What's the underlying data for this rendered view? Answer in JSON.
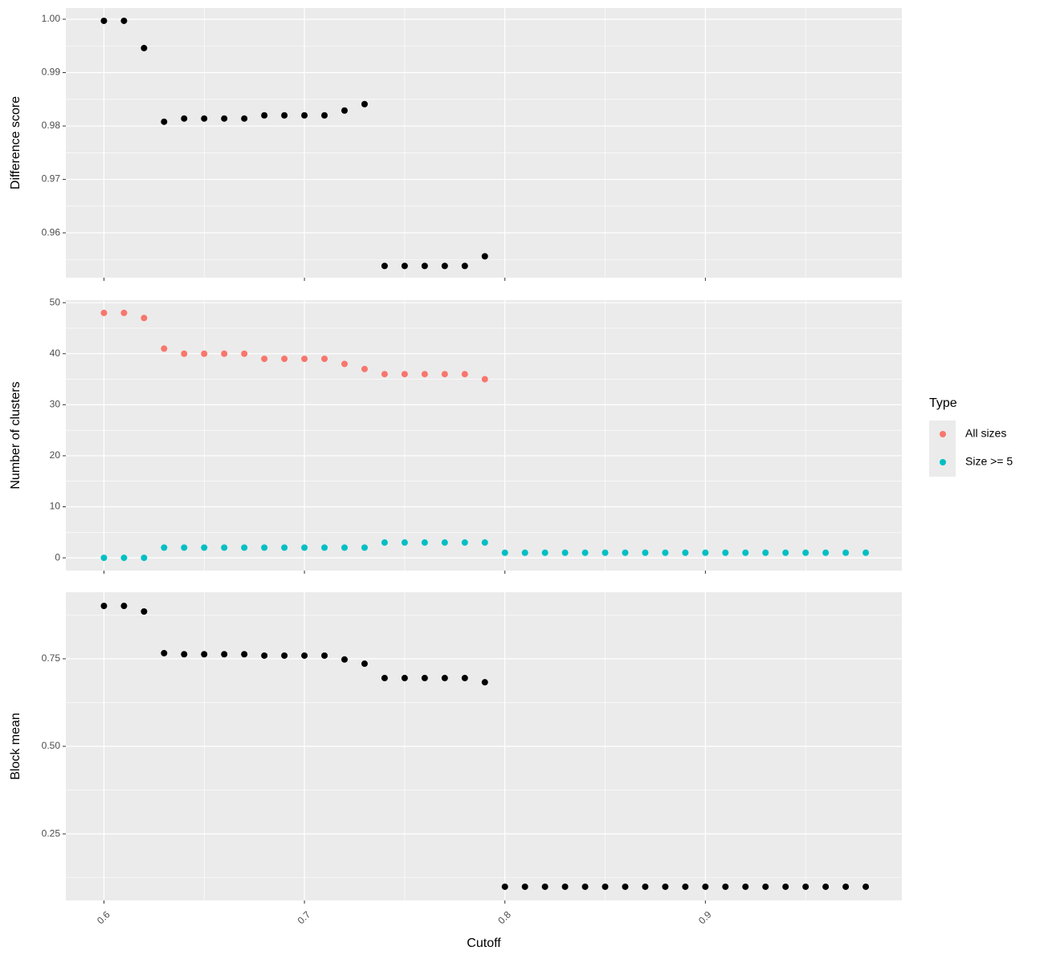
{
  "chart_data": [
    {
      "type": "scatter",
      "y_label": "Difference score",
      "x": [
        0.6,
        0.61,
        0.62,
        0.63,
        0.64,
        0.65,
        0.66,
        0.67,
        0.68,
        0.69,
        0.7,
        0.71,
        0.72,
        0.73,
        0.74,
        0.75,
        0.76,
        0.77,
        0.78,
        0.79,
        0.8,
        0.81,
        0.82,
        0.83,
        0.84,
        0.85,
        0.86,
        0.87,
        0.88,
        0.89,
        0.9,
        0.91,
        0.92,
        0.93,
        0.94,
        0.95,
        0.96,
        0.97,
        0.98
      ],
      "values": [
        0.9997,
        0.9997,
        0.9946,
        0.9808,
        0.9814,
        0.9814,
        0.9814,
        0.9814,
        0.982,
        0.982,
        0.982,
        0.982,
        0.9829,
        0.9841,
        0.9538,
        0.9538,
        0.9538,
        0.9538,
        0.9538,
        0.9556,
        null,
        null,
        null,
        null,
        null,
        null,
        null,
        null,
        null,
        null,
        null,
        null,
        null,
        null,
        null,
        null,
        null,
        null,
        null
      ],
      "color": "#000000",
      "xlim": [
        0.581,
        0.998
      ],
      "xticks": [
        0.6,
        0.7,
        0.8,
        0.9
      ],
      "ylim": [
        0.9516,
        1.0021
      ],
      "yticks": [
        0.96,
        0.97,
        0.98,
        0.99,
        {
          "value": 1,
          "label": "1.00"
        }
      ],
      "grid": true,
      "minor_grid": true
    },
    {
      "type": "scatter",
      "y_label": "Number of clusters",
      "x": [
        0.6,
        0.61,
        0.62,
        0.63,
        0.64,
        0.65,
        0.66,
        0.67,
        0.68,
        0.69,
        0.7,
        0.71,
        0.72,
        0.73,
        0.74,
        0.75,
        0.76,
        0.77,
        0.78,
        0.79,
        0.8,
        0.81,
        0.82,
        0.83,
        0.84,
        0.85,
        0.86,
        0.87,
        0.88,
        0.89,
        0.9,
        0.91,
        0.92,
        0.93,
        0.94,
        0.95,
        0.96,
        0.97,
        0.98
      ],
      "series": [
        {
          "name": "All sizes",
          "color": "#F8766D",
          "values": [
            48,
            48,
            47,
            41,
            40,
            40,
            40,
            40,
            39,
            39,
            39,
            39,
            38,
            37,
            36,
            36,
            36,
            36,
            36,
            35,
            null,
            null,
            null,
            null,
            null,
            null,
            null,
            null,
            null,
            null,
            null,
            null,
            null,
            null,
            null,
            null,
            null,
            null,
            null
          ]
        },
        {
          "name": "Size >= 5",
          "color": "#00BFC4",
          "values": [
            0,
            0,
            0,
            2,
            2,
            2,
            2,
            2,
            2,
            2,
            2,
            2,
            2,
            2,
            3,
            3,
            3,
            3,
            3,
            3,
            1,
            1,
            1,
            1,
            1,
            1,
            1,
            1,
            1,
            1,
            1,
            1,
            1,
            1,
            1,
            1,
            1,
            1,
            1
          ]
        }
      ],
      "legend_title": "Type",
      "legend": "right",
      "xlim": [
        0.581,
        0.998
      ],
      "xticks": [
        0.6,
        0.7,
        0.8,
        0.9
      ],
      "ylim": [
        -2.5,
        50.5
      ],
      "yticks": [
        0,
        10,
        20,
        30,
        40,
        50
      ],
      "grid": true,
      "minor_grid": true
    },
    {
      "type": "scatter",
      "y_label": "Block mean",
      "x_label": "Cutoff",
      "x": [
        0.6,
        0.61,
        0.62,
        0.63,
        0.64,
        0.65,
        0.66,
        0.67,
        0.68,
        0.69,
        0.7,
        0.71,
        0.72,
        0.73,
        0.74,
        0.75,
        0.76,
        0.77,
        0.78,
        0.79,
        0.8,
        0.81,
        0.82,
        0.83,
        0.84,
        0.85,
        0.86,
        0.87,
        0.88,
        0.89,
        0.9,
        0.91,
        0.92,
        0.93,
        0.94,
        0.95,
        0.96,
        0.97,
        0.98
      ],
      "values": [
        0.901,
        0.901,
        0.885,
        0.766,
        0.763,
        0.763,
        0.763,
        0.763,
        0.759,
        0.759,
        0.759,
        0.759,
        0.748,
        0.736,
        0.695,
        0.695,
        0.695,
        0.695,
        0.695,
        0.683,
        0.099,
        0.099,
        0.099,
        0.099,
        0.099,
        0.099,
        0.099,
        0.099,
        0.099,
        0.099,
        0.099,
        0.099,
        0.099,
        0.099,
        0.099,
        0.099,
        0.099,
        0.099,
        0.099
      ],
      "color": "#000000",
      "xlim": [
        0.581,
        0.998
      ],
      "xticks": [
        0.6,
        0.7,
        0.8,
        0.9
      ],
      "ylim": [
        0.06,
        0.94
      ],
      "yticks": [
        0.25,
        {
          "value": 0.5,
          "label": "0.50"
        },
        0.75
      ],
      "grid": true,
      "minor_grid": true
    }
  ]
}
